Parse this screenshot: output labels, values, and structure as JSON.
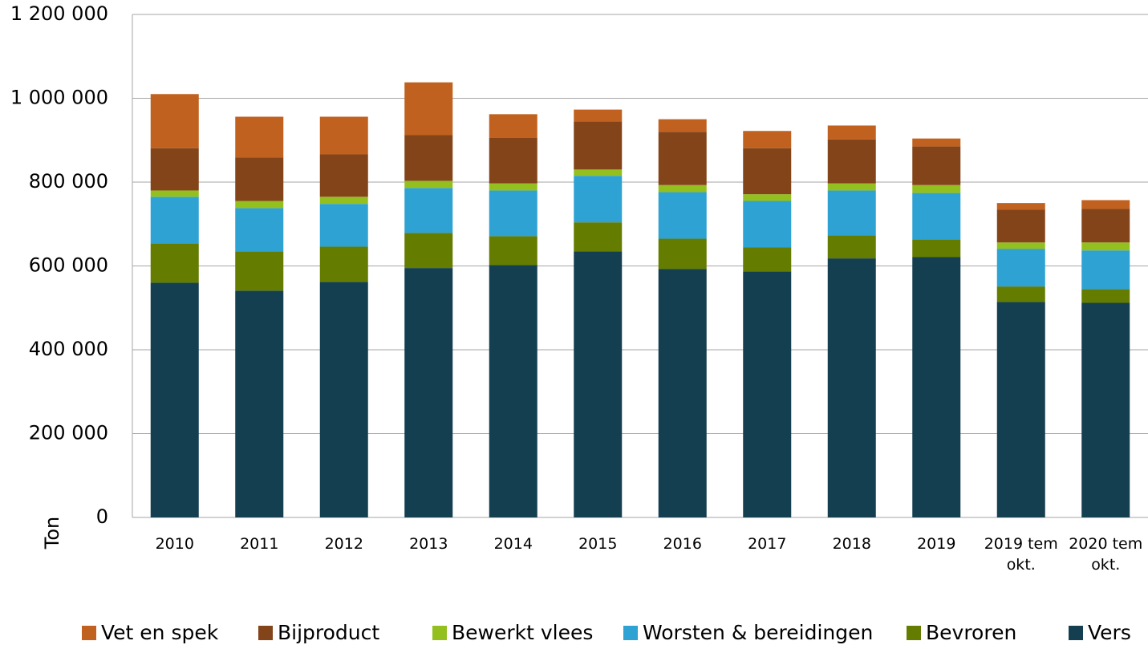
{
  "chart_data": {
    "type": "bar",
    "stacked": true,
    "y_label": "Ton",
    "categories": [
      "2010",
      "2011",
      "2012",
      "2013",
      "2014",
      "2015",
      "2016",
      "2017",
      "2018",
      "2019",
      "2019 tem okt.",
      "2020 tem okt."
    ],
    "series": [
      {
        "name": "Vet en spek",
        "color": "#c0611f",
        "values": [
          129000,
          97000,
          90000,
          126000,
          56000,
          28000,
          30000,
          41000,
          33000,
          19000,
          16000,
          21000
        ]
      },
      {
        "name": "Bijproduct",
        "color": "#84441a",
        "values": [
          101000,
          104000,
          101000,
          109000,
          109000,
          115000,
          127000,
          110000,
          105000,
          92000,
          78000,
          80000
        ]
      },
      {
        "name": "Bewerkt vlees",
        "color": "#93c01f",
        "values": [
          15000,
          17000,
          17000,
          17000,
          17000,
          15000,
          17000,
          16000,
          17000,
          19000,
          15000,
          19000
        ]
      },
      {
        "name": "Worsten & bereidingen",
        "color": "#2ea2d3",
        "values": [
          111000,
          103000,
          102000,
          107000,
          109000,
          111000,
          111000,
          111000,
          107000,
          111000,
          90000,
          92000
        ]
      },
      {
        "name": "Bevroren",
        "color": "#647c00",
        "values": [
          94000,
          94000,
          84000,
          84000,
          69000,
          69000,
          72000,
          57000,
          55000,
          42000,
          37000,
          33000
        ]
      },
      {
        "name": "Vers",
        "color": "#133f50",
        "values": [
          560000,
          541000,
          562000,
          595000,
          602000,
          635000,
          593000,
          587000,
          618000,
          621000,
          514000,
          512000
        ]
      }
    ],
    "ylim": [
      0,
      1200000
    ],
    "yticks": [
      0,
      {
        "value": 200000,
        "label": "200 000"
      },
      {
        "value": 400000,
        "label": "400 000"
      },
      {
        "value": 600000,
        "label": "600 000"
      },
      {
        "value": 800000,
        "label": "800 000"
      },
      {
        "value": 1000000,
        "label": "1 000 000"
      },
      {
        "value": 1200000,
        "label": "1 200 000"
      }
    ],
    "grid": true,
    "legend": "bottom"
  }
}
